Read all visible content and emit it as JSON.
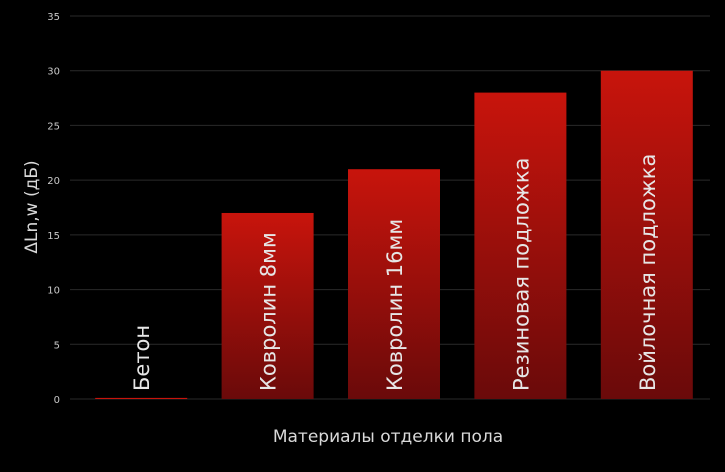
{
  "chart_data": {
    "type": "bar",
    "categories": [
      "Бетон",
      "Ковролин 8мм",
      "Ковролин 16мм",
      "Резиновая подложка",
      "Войлочная подложка"
    ],
    "values": [
      0.1,
      17,
      21,
      28,
      30
    ],
    "xlabel": "Материалы отделки пола",
    "ylabel": "ΔLn,w (дБ)",
    "ylim": [
      0,
      35
    ],
    "yticks": [
      0,
      5,
      10,
      15,
      20,
      25,
      30,
      35
    ],
    "grid": true,
    "legend": "none",
    "labels_inside_bars": true,
    "colors": {
      "background": "#000000",
      "bar_top": "#c8140c",
      "bar_bottom": "#6a0a0a",
      "grid": "#2a2a2a",
      "text": "#d9d9d9"
    }
  }
}
